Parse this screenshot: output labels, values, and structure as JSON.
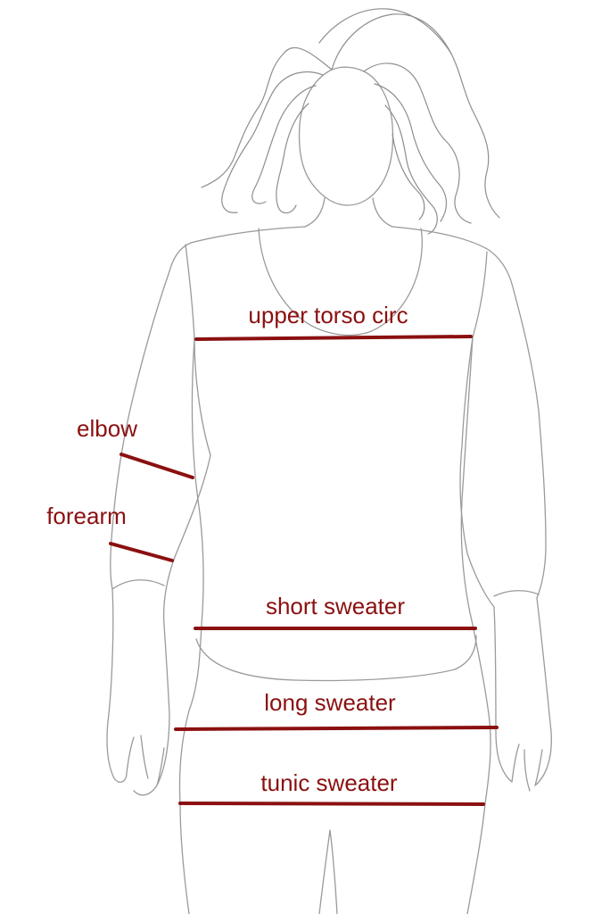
{
  "labels": {
    "upper_torso": "upper torso circ",
    "elbow": "elbow",
    "forearm": "forearm",
    "short_sweater": "short sweater",
    "long_sweater": "long sweater",
    "tunic_sweater": "tunic sweater"
  },
  "colors": {
    "measurement": "#8b1010",
    "outline": "#9a9a9a",
    "background": "#ffffff"
  }
}
